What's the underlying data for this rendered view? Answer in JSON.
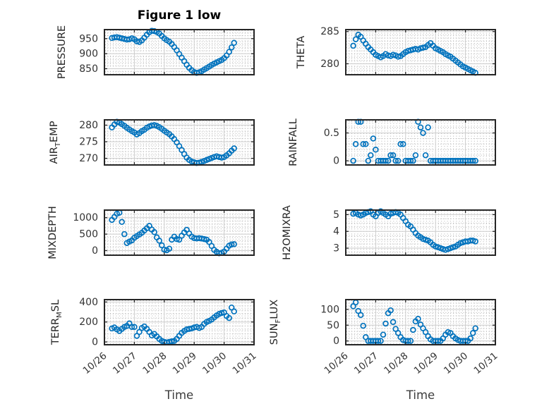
{
  "figure": {
    "title": "Figure 1 low",
    "xlabel": "Time",
    "marker_color": "#0072BD",
    "axis_color": "#262626",
    "grid_major_color": "#cbcbcb",
    "grid_minor_color": "#b5b5b5",
    "tick_label_color": "#333333"
  },
  "chart_data": [
    {
      "id": "pressure",
      "type": "scatter",
      "marker": "open-circle",
      "panel": {
        "row": 0,
        "col": 0
      },
      "ylabel": "PRESSURE",
      "ylabel_parts": [
        {
          "text": "PRESSURE"
        }
      ],
      "ylim": [
        830,
        980
      ],
      "yticks": [
        850,
        900,
        950
      ],
      "yminor_step": 10,
      "points": {
        "t0": 0.25,
        "dt": 0.08333,
        "values": [
          952,
          954,
          955,
          953,
          951,
          949,
          947,
          948,
          951,
          948,
          941,
          939,
          944,
          953,
          963,
          971,
          976,
          975,
          972,
          967,
          959,
          951,
          945,
          940,
          932,
          922,
          911,
          899,
          887,
          875,
          863,
          853,
          845,
          839,
          836,
          838,
          842,
          847,
          852,
          857,
          862,
          867,
          871,
          875,
          879,
          885,
          894,
          906,
          921,
          936
        ]
      }
    },
    {
      "id": "theta",
      "type": "scatter",
      "marker": "open-circle",
      "panel": {
        "row": 0,
        "col": 1
      },
      "ylabel": "THETA",
      "ylabel_parts": [
        {
          "text": "THETA"
        }
      ],
      "ylim": [
        278.3,
        285.3
      ],
      "yticks": [
        280,
        285
      ],
      "yminor_step": 0.5,
      "points": {
        "t0": 0.25,
        "dt": 0.08333,
        "values": [
          282.8,
          283.8,
          284.5,
          284.2,
          283.6,
          283.1,
          282.6,
          282.2,
          281.8,
          281.4,
          281.2,
          281,
          281.2,
          281.5,
          281.3,
          281.2,
          281.4,
          281.3,
          281.1,
          281.2,
          281.5,
          281.8,
          282,
          282.1,
          282.2,
          282.3,
          282.2,
          282.4,
          282.5,
          282.6,
          282.9,
          283.2,
          282.8,
          282.4,
          282.2,
          282,
          281.8,
          281.5,
          281.3,
          281.1,
          280.8,
          280.5,
          280.2,
          279.9,
          279.6,
          279.4,
          279.2,
          279,
          278.8,
          278.6
        ]
      }
    },
    {
      "id": "air_temp",
      "type": "scatter",
      "marker": "open-circle",
      "panel": {
        "row": 1,
        "col": 0
      },
      "ylabel": "AIR_TEMP",
      "ylabel_parts": [
        {
          "text": "AIR"
        },
        {
          "sub": "T"
        },
        {
          "text": "EMP"
        }
      ],
      "ylim": [
        268,
        281.6
      ],
      "yticks": [
        270,
        275,
        280
      ],
      "yminor_step": 1,
      "points": {
        "t0": 0.25,
        "dt": 0.08333,
        "values": [
          279.3,
          280.2,
          281,
          280.8,
          280.3,
          279.8,
          279.2,
          278.7,
          278.2,
          277.8,
          277.2,
          277.6,
          278.2,
          278.6,
          279.2,
          279.6,
          279.9,
          280,
          279.8,
          279.4,
          278.9,
          278.3,
          277.8,
          277.3,
          276.6,
          275.8,
          274.8,
          273.7,
          272.5,
          271.3,
          270.2,
          269.5,
          269,
          268.8,
          268.6,
          268.7,
          268.9,
          269.2,
          269.5,
          269.8,
          270.1,
          270.4,
          270.6,
          270.4,
          270.2,
          270.4,
          270.9,
          271.5,
          272.3,
          273
        ]
      }
    },
    {
      "id": "rainfall",
      "type": "scatter",
      "marker": "open-circle",
      "panel": {
        "row": 1,
        "col": 1
      },
      "ylabel": "RAINFALL",
      "ylabel_parts": [
        {
          "text": "RAINFALL"
        }
      ],
      "ylim": [
        -0.075,
        0.735
      ],
      "yticks": [
        0,
        0.5
      ],
      "yminor_step": 0.1,
      "points": {
        "t0": 0.25,
        "dt": 0.08333,
        "values": [
          0,
          0.3,
          0.7,
          0.7,
          0.3,
          0.3,
          0,
          0.1,
          0.4,
          0.2,
          0,
          0,
          0,
          0,
          0,
          0.1,
          0.1,
          0,
          0,
          0.3,
          0.3,
          0,
          0,
          0,
          0,
          0.1,
          0.7,
          0.6,
          0.5,
          0.1,
          0.6,
          0,
          0,
          0,
          0,
          0,
          0,
          0,
          0,
          0,
          0,
          0,
          0,
          0,
          0,
          0,
          0,
          0,
          0,
          0
        ]
      }
    },
    {
      "id": "mixdepth",
      "type": "scatter",
      "marker": "open-circle",
      "panel": {
        "row": 2,
        "col": 0
      },
      "ylabel": "MIXDEPTH",
      "ylabel_parts": [
        {
          "text": "MIXDEPTH"
        }
      ],
      "ylim": [
        -140,
        1230
      ],
      "yticks": [
        0,
        500,
        1000
      ],
      "yminor_step": 100,
      "points": {
        "t0": 0.25,
        "dt": 0.08333,
        "values": [
          930,
          1020,
          1120,
          1150,
          870,
          500,
          230,
          270,
          310,
          390,
          440,
          490,
          540,
          610,
          680,
          750,
          640,
          560,
          400,
          300,
          160,
          30,
          10,
          60,
          330,
          420,
          350,
          330,
          450,
          550,
          630,
          520,
          420,
          380,
          370,
          375,
          365,
          350,
          330,
          260,
          140,
          20,
          -40,
          -80,
          -70,
          -30,
          60,
          150,
          185,
          195
        ]
      }
    },
    {
      "id": "h2omixra",
      "type": "scatter",
      "marker": "open-circle",
      "panel": {
        "row": 2,
        "col": 1
      },
      "ylabel": "H2OMIXRA",
      "ylabel_parts": [
        {
          "text": "H2OMIXRA"
        }
      ],
      "ylim": [
        2.58,
        5.27
      ],
      "yticks": [
        3,
        4,
        5
      ],
      "yminor_step": 0.25,
      "points": {
        "t0": 0.25,
        "dt": 0.08333,
        "values": [
          5.05,
          5.1,
          5,
          4.95,
          5,
          5.1,
          5.15,
          5.2,
          5,
          4.9,
          5.1,
          5.2,
          5.1,
          5,
          4.9,
          5.05,
          5.1,
          5.15,
          5.1,
          5,
          4.8,
          4.6,
          4.4,
          4.3,
          4.1,
          3.9,
          3.75,
          3.65,
          3.55,
          3.5,
          3.45,
          3.35,
          3.2,
          3.1,
          3.05,
          3,
          2.95,
          2.9,
          2.95,
          3,
          3.05,
          3.1,
          3.2,
          3.3,
          3.35,
          3.4,
          3.4,
          3.45,
          3.45,
          3.4
        ]
      }
    },
    {
      "id": "terr_msl",
      "type": "scatter",
      "marker": "open-circle",
      "panel": {
        "row": 3,
        "col": 0
      },
      "ylabel": "TERR_MSL",
      "ylabel_parts": [
        {
          "text": "TERR"
        },
        {
          "sub": "M"
        },
        {
          "text": "SL"
        }
      ],
      "ylim": [
        -28,
        424
      ],
      "yticks": [
        0,
        200,
        400
      ],
      "yminor_step": 40,
      "points": {
        "t0": 0.25,
        "dt": 0.08333,
        "values": [
          135,
          145,
          125,
          110,
          130,
          150,
          160,
          185,
          150,
          150,
          60,
          100,
          140,
          155,
          130,
          100,
          65,
          80,
          55,
          30,
          10,
          0,
          -5,
          0,
          5,
          10,
          30,
          60,
          90,
          110,
          125,
          130,
          135,
          145,
          150,
          140,
          150,
          180,
          200,
          210,
          225,
          245,
          265,
          280,
          290,
          295,
          260,
          240,
          345,
          305
        ]
      }
    },
    {
      "id": "sun_flux",
      "type": "scatter",
      "marker": "open-circle",
      "panel": {
        "row": 3,
        "col": 1
      },
      "ylabel": "SUN_FLUX",
      "ylabel_parts": [
        {
          "text": "SUN"
        },
        {
          "sub": "F"
        },
        {
          "text": "LUX"
        }
      ],
      "ylim": [
        -12,
        131
      ],
      "yticks": [
        0,
        50,
        100
      ],
      "yminor_step": 10,
      "points": {
        "t0": 0.25,
        "dt": 0.08333,
        "values": [
          110,
          122,
          95,
          82,
          48,
          12,
          0,
          0,
          0,
          0,
          0,
          0,
          20,
          55,
          88,
          97,
          60,
          38,
          25,
          12,
          3,
          0,
          0,
          0,
          35,
          62,
          70,
          52,
          40,
          28,
          15,
          5,
          0,
          0,
          0,
          0,
          8,
          20,
          28,
          25,
          15,
          8,
          3,
          0,
          0,
          0,
          0,
          8,
          25,
          40
        ]
      }
    }
  ],
  "x_axis": {
    "label": "Time",
    "range_days": [
      0,
      5
    ],
    "ticks": [
      0,
      1,
      2,
      3,
      4,
      5
    ],
    "tick_labels": [
      "10/26",
      "10/27",
      "10/28",
      "10/29",
      "10/30",
      "10/31"
    ],
    "minor_step": 0.1,
    "tick_rotation_deg": -40
  }
}
